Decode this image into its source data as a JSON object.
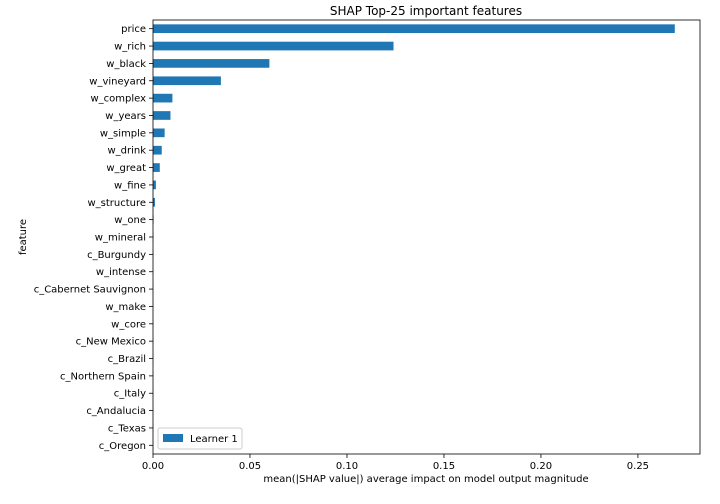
{
  "chart_data": {
    "type": "bar",
    "orientation": "horizontal",
    "title": "SHAP Top-25 important features",
    "xlabel": "mean(|SHAP value|) average impact on model output magnitude",
    "ylabel": "feature",
    "xlim": [
      0,
      0.282
    ],
    "xticks": [
      0.0,
      0.05,
      0.1,
      0.15,
      0.2,
      0.25
    ],
    "xtick_labels": [
      "0.00",
      "0.05",
      "0.10",
      "0.15",
      "0.20",
      "0.25"
    ],
    "categories": [
      "price",
      "w_rich",
      "w_black",
      "w_vineyard",
      "w_complex",
      "w_years",
      "w_simple",
      "w_drink",
      "w_great",
      "w_fine",
      "w_structure",
      "w_one",
      "w_mineral",
      "c_Burgundy",
      "w_intense",
      "c_Cabernet Sauvignon",
      "w_make",
      "w_core",
      "c_New Mexico",
      "c_Brazil",
      "c_Northern Spain",
      "c_Italy",
      "c_Andalucia",
      "c_Texas",
      "c_Oregon"
    ],
    "series": [
      {
        "name": "Learner 1",
        "color": "#1f77b4",
        "values": [
          0.269,
          0.124,
          0.06,
          0.035,
          0.01,
          0.009,
          0.006,
          0.0045,
          0.0035,
          0.0015,
          0.001,
          0.0003,
          0.0002,
          0.0002,
          0.0001,
          0.0001,
          0.0001,
          0.0001,
          0.0001,
          0.0001,
          0.0001,
          0.0001,
          0.0001,
          0.0001,
          0.0001
        ]
      }
    ],
    "legend": "lower-left",
    "grid": false
  }
}
